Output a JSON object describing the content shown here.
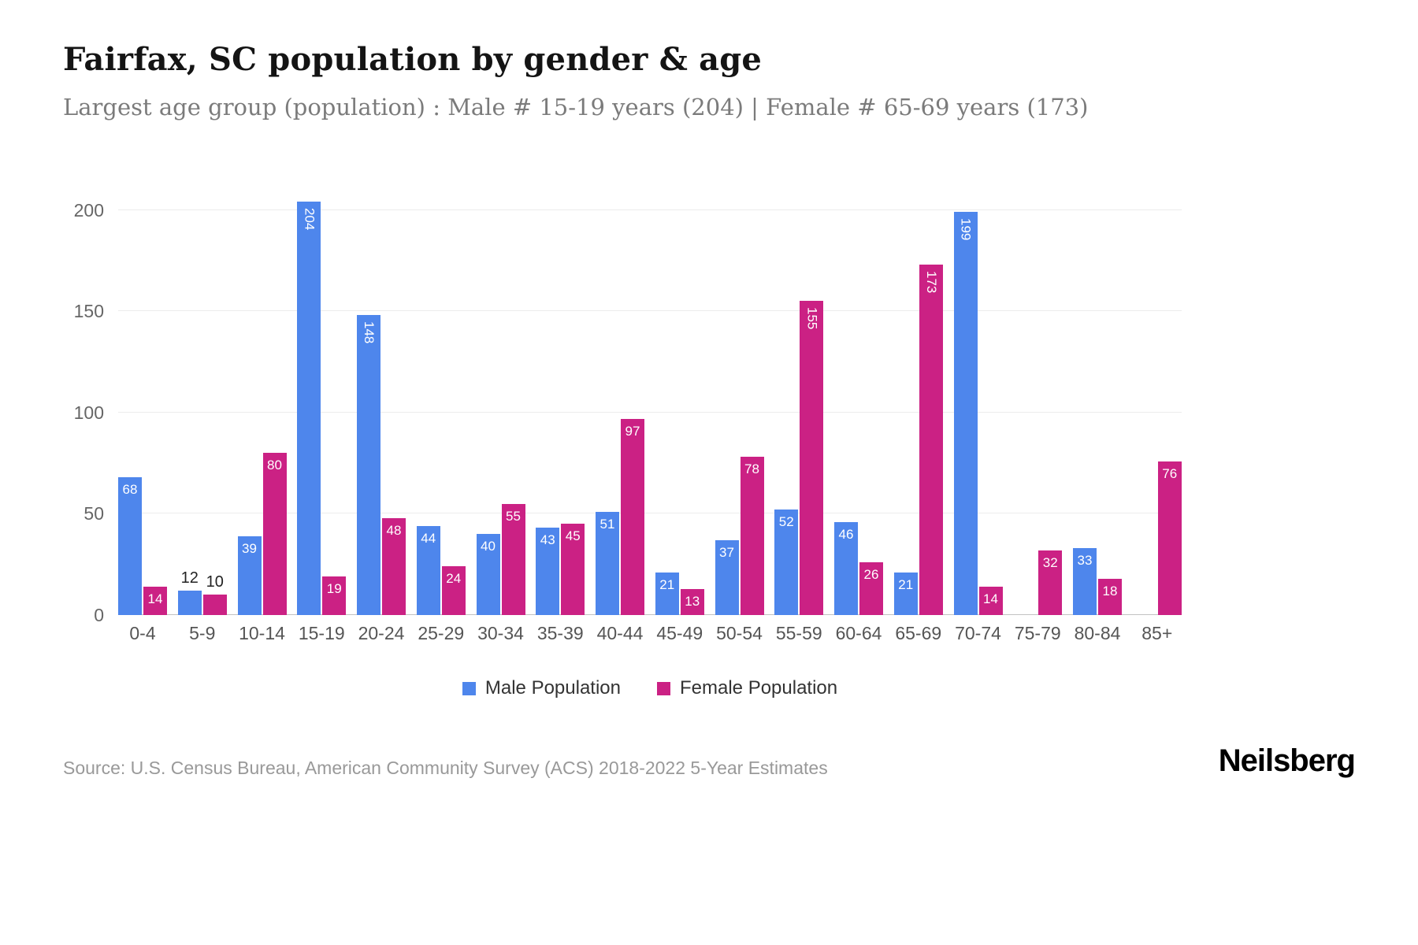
{
  "header": {
    "title": "Fairfax, SC population by gender & age",
    "subtitle": "Largest age group (population) : Male # 15-19 years (204) | Female # 65-69 years (173)"
  },
  "chart_data": {
    "type": "bar",
    "title": "Fairfax, SC population by gender & age",
    "categories": [
      "0-4",
      "5-9",
      "10-14",
      "15-19",
      "20-24",
      "25-29",
      "30-34",
      "35-39",
      "40-44",
      "45-49",
      "50-54",
      "55-59",
      "60-64",
      "65-69",
      "70-74",
      "75-79",
      "80-84",
      "85+"
    ],
    "series": [
      {
        "name": "Male Population",
        "color": "#4e86ec",
        "values": [
          68,
          12,
          39,
          204,
          148,
          44,
          40,
          43,
          51,
          21,
          37,
          52,
          46,
          21,
          199,
          0,
          33,
          0
        ]
      },
      {
        "name": "Female Population",
        "color": "#cb2184",
        "values": [
          14,
          10,
          80,
          19,
          48,
          24,
          55,
          45,
          97,
          13,
          78,
          155,
          26,
          173,
          14,
          32,
          18,
          76
        ]
      }
    ],
    "xlabel": "",
    "ylabel": "",
    "ylim": [
      0,
      210
    ],
    "yticks": [
      0,
      50,
      100,
      150,
      200
    ],
    "grid": true,
    "legend_position": "bottom",
    "label_outside_below": 13,
    "vertical_label_from": 100
  },
  "legend": {
    "items": [
      {
        "label": "Male Population",
        "color": "#4e86ec"
      },
      {
        "label": "Female Population",
        "color": "#cb2184"
      }
    ]
  },
  "footer": {
    "source": "Source: U.S. Census Bureau, American Community Survey (ACS) 2018-2022 5-Year Estimates",
    "brand": "Neilsberg"
  }
}
